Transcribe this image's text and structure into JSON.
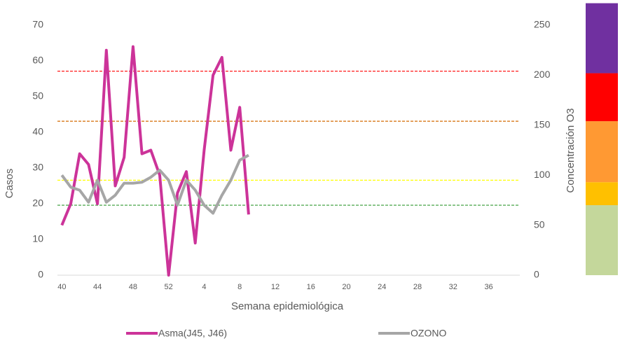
{
  "chart_data": {
    "type": "line",
    "x_label": "Semana epidemiológica",
    "y_label": "Casos",
    "y2_label": "Concentración O3",
    "categories": [
      "40",
      null,
      null,
      null,
      "44",
      null,
      null,
      null,
      "48",
      null,
      null,
      null,
      "52",
      null,
      null,
      null,
      "4",
      null,
      null,
      null,
      "8",
      null,
      null,
      null,
      "12",
      null,
      null,
      null,
      "16",
      null,
      null,
      null,
      "20",
      null,
      null,
      null,
      "24",
      null,
      null,
      null,
      "28",
      null,
      null,
      null,
      "32",
      null,
      null,
      null,
      "36",
      null,
      null,
      null
    ],
    "ylim": [
      0,
      70
    ],
    "yticks": [
      0,
      10,
      20,
      30,
      40,
      50,
      60,
      70
    ],
    "y2lim": [
      0,
      250
    ],
    "y2ticks": [
      0,
      50,
      100,
      150,
      200,
      250
    ],
    "series": [
      {
        "name": "Asma(J45, J46)",
        "color": "#cc3399",
        "values": [
          14,
          20,
          34,
          31,
          20,
          63,
          25,
          33,
          64,
          34,
          35,
          28,
          0,
          23,
          29,
          9,
          35,
          56,
          61,
          35,
          47,
          17,
          null,
          null,
          null,
          null,
          null,
          null,
          null,
          null,
          null,
          null,
          null,
          null,
          null,
          null,
          null,
          null,
          null,
          null,
          null,
          null,
          null,
          null,
          null,
          null,
          null,
          null,
          null,
          null,
          null,
          null
        ]
      },
      {
        "name": "OZONO",
        "color": "#a6a6a6",
        "axis": "y2",
        "values": [
          100,
          88,
          85,
          73,
          95,
          73,
          80,
          92,
          92,
          93,
          98,
          105,
          95,
          70,
          95,
          85,
          70,
          62,
          80,
          95,
          115,
          120,
          null,
          null,
          null,
          null,
          null,
          null,
          null,
          null,
          null,
          null,
          null,
          null,
          null,
          null,
          null,
          null,
          null,
          null,
          null,
          null,
          null,
          null,
          null,
          null,
          null,
          null,
          null,
          null,
          null,
          null
        ]
      }
    ],
    "reference_lines": [
      {
        "value": 204,
        "color": "#ff0000"
      },
      {
        "value": 154,
        "color": "#d46a00"
      },
      {
        "value": 95,
        "color": "#ffff00"
      },
      {
        "value": 70,
        "color": "#339933"
      }
    ],
    "bands": [
      {
        "from": 0,
        "to": 70,
        "color": "#c4d79b"
      },
      {
        "from": 70,
        "to": 93,
        "color": "#ffc000"
      },
      {
        "from": 93,
        "to": 154,
        "color": "#ff9933"
      },
      {
        "from": 154,
        "to": 202,
        "color": "#ff0000"
      },
      {
        "from": 202,
        "to": 272,
        "color": "#7030a0"
      }
    ]
  }
}
